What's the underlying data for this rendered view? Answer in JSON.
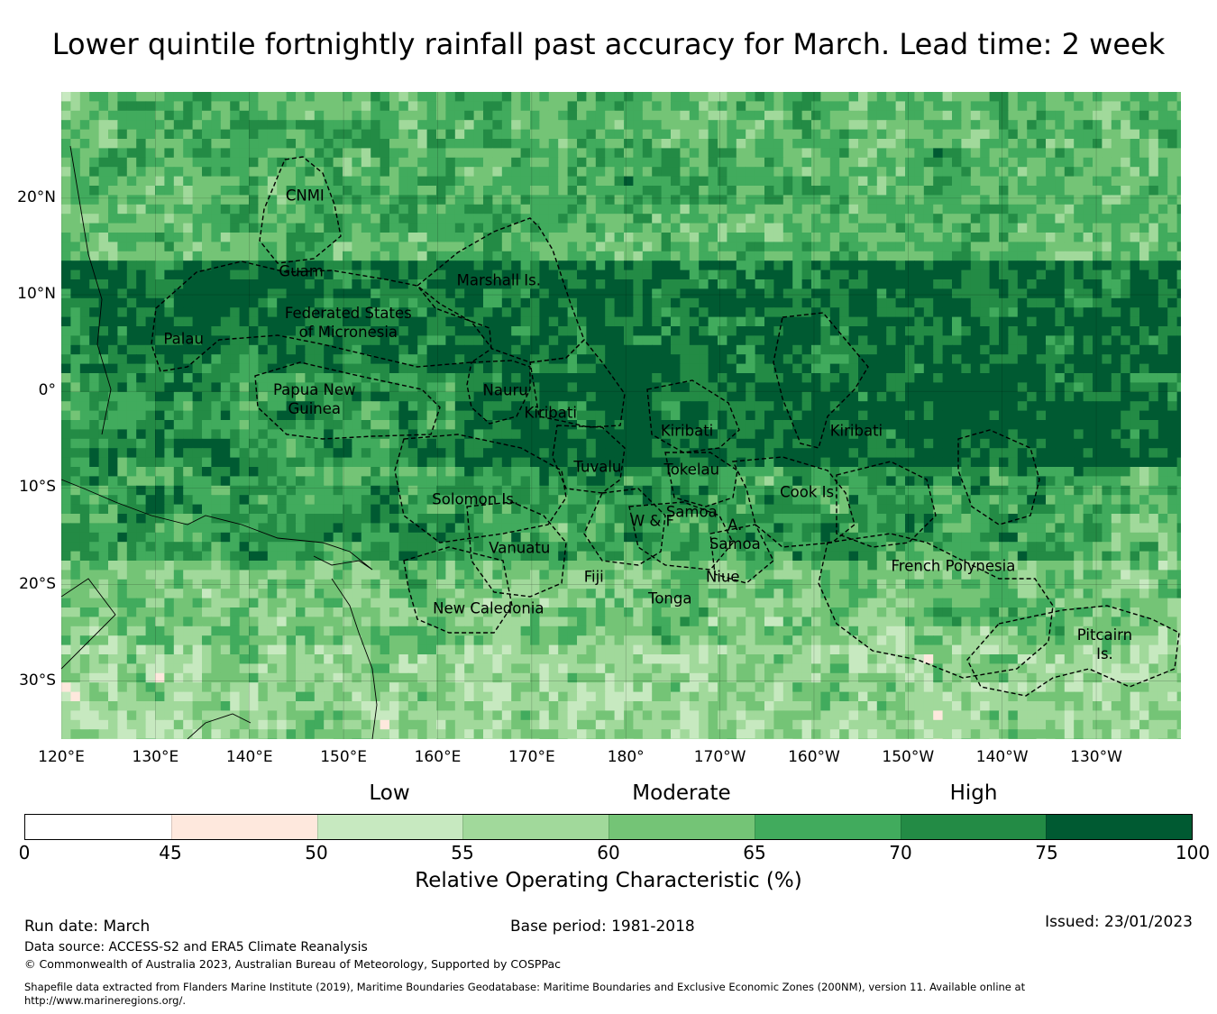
{
  "title": "Lower quintile fortnightly rainfall past accuracy for March. Lead time: 2 week",
  "map": {
    "lat_labels": [
      {
        "text": "20°N",
        "lat": 20
      },
      {
        "text": "10°N",
        "lat": 10
      },
      {
        "text": "0°",
        "lat": 0
      },
      {
        "text": "10°S",
        "lat": -10
      },
      {
        "text": "20°S",
        "lat": -20
      },
      {
        "text": "30°S",
        "lat": -30
      }
    ],
    "lon_labels": [
      {
        "text": "120°E",
        "lon": 120
      },
      {
        "text": "130°E",
        "lon": 130
      },
      {
        "text": "140°E",
        "lon": 140
      },
      {
        "text": "150°E",
        "lon": 150
      },
      {
        "text": "160°E",
        "lon": 160
      },
      {
        "text": "170°E",
        "lon": 170
      },
      {
        "text": "180°",
        "lon": 180
      },
      {
        "text": "170°W",
        "lon": 190
      },
      {
        "text": "160°W",
        "lon": 200
      },
      {
        "text": "150°W",
        "lon": 210
      },
      {
        "text": "140°W",
        "lon": 220
      },
      {
        "text": "130°W",
        "lon": 230
      }
    ],
    "extent": {
      "lon_min": 120,
      "lon_max": 239,
      "lat_min": -36,
      "lat_max": 31
    },
    "regions": [
      {
        "name": "CNMI",
        "lon": 145.9,
        "lat": 20.3
      },
      {
        "name": "Guam",
        "lon": 145.5,
        "lat": 12.4
      },
      {
        "name": "Federated States\nof Micronesia",
        "lon": 150.5,
        "lat": 7.1
      },
      {
        "name": "Palau",
        "lon": 133,
        "lat": 5.4
      },
      {
        "name": "Marshall Is.",
        "lon": 166.5,
        "lat": 11.5
      },
      {
        "name": "Papua New\nGuinea",
        "lon": 146.9,
        "lat": -0.8
      },
      {
        "name": "Nauru",
        "lon": 167.2,
        "lat": 0.1
      },
      {
        "name": "Kiribati",
        "lon": 172,
        "lat": -2.2
      },
      {
        "name": "Kiribati",
        "lon": 186.5,
        "lat": -4.1
      },
      {
        "name": "Kiribati",
        "lon": 204.5,
        "lat": -4.1
      },
      {
        "name": "Tuvalu",
        "lon": 177,
        "lat": -7.8
      },
      {
        "name": "Tokelau",
        "lon": 187,
        "lat": -8.1
      },
      {
        "name": "Cook Is.",
        "lon": 199.5,
        "lat": -10.4
      },
      {
        "name": "Solomon Is.",
        "lon": 164,
        "lat": -11.2
      },
      {
        "name": "Samoa",
        "lon": 187,
        "lat": -12.5
      },
      {
        "name": "W & F",
        "lon": 182.8,
        "lat": -13.4
      },
      {
        "name": "A.\nSamoa",
        "lon": 191.6,
        "lat": -14.8
      },
      {
        "name": "Vanuatu",
        "lon": 168.7,
        "lat": -16.2
      },
      {
        "name": "French Polynesia",
        "lon": 214.8,
        "lat": -18.1
      },
      {
        "name": "Fiji",
        "lon": 176.6,
        "lat": -19.2
      },
      {
        "name": "Niue",
        "lon": 190.3,
        "lat": -19.2
      },
      {
        "name": "Tonga",
        "lon": 184.7,
        "lat": -21.4
      },
      {
        "name": "New Caledonia",
        "lon": 165.4,
        "lat": -22.5
      },
      {
        "name": "Pitcairn\nIs.",
        "lon": 230.9,
        "lat": -26.2
      }
    ]
  },
  "legend": {
    "categories": [
      {
        "text": "Low",
        "position": 55
      },
      {
        "text": "Moderate",
        "position": 65
      },
      {
        "text": "High",
        "position": 75
      }
    ],
    "bounds": [
      0,
      45,
      50,
      55,
      60,
      65,
      70,
      75,
      100
    ],
    "colors": [
      "#ffffff",
      "#fee8dd",
      "#c7e9c0",
      "#a1d99b",
      "#74c476",
      "#41ab5d",
      "#238b45",
      "#005a32"
    ],
    "label": "Relative Operating Characteristic (%)"
  },
  "footer": {
    "run_date": "Run date: March",
    "base_period": "Base period: 1981-2018",
    "issued": "Issued: 23/01/2023",
    "data_source": "Data source: ACCESS-S2 and ERA5 Climate Reanalysis",
    "copyright": "© Commonwealth of Australia 2023, Australian Bureau of Meteorology, Supported by COSPPac",
    "shapefile_line1": "Shapefile data extracted from Flanders Marine Institute (2019), Maritime Boundaries Geodatabase: Maritime Boundaries and Exclusive Economic Zones (200NM), version 11. Available online at",
    "shapefile_line2": "http://www.marineregions.org/."
  }
}
